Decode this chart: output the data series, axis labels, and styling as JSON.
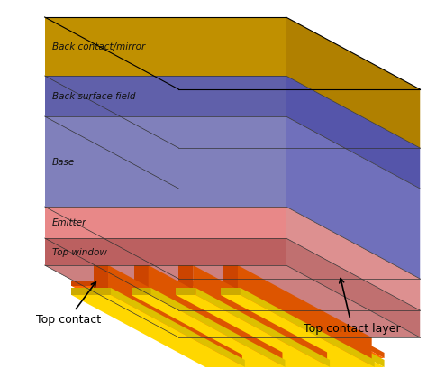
{
  "layers": [
    {
      "name": "Back contact/mirror",
      "color_top": "#D4A800",
      "color_front": "#B8900A",
      "color_side": "#C9A000",
      "thickness": 0.7
    },
    {
      "name": "Back surface field",
      "color_top": "#8888CC",
      "color_front": "#6666AA",
      "color_side": "#7777BB",
      "thickness": 0.5
    },
    {
      "name": "Base",
      "color_top": "#AAAADD",
      "color_front": "#8888BB",
      "color_side": "#9999CC",
      "thickness": 1.0
    },
    {
      "name": "Emitter",
      "color_top": "#FFB0B0",
      "color_front": "#EE9090",
      "color_side": "#F8A0A0",
      "thickness": 0.4
    },
    {
      "name": "Top window",
      "color_top": "#CC7777",
      "color_front": "#BB6666",
      "color_side": "#C97070",
      "thickness": 0.35
    }
  ],
  "bg_color": "#FFFFFF",
  "annotation_color": "#000000",
  "finger_orange": "#FF6600",
  "finger_yellow": "#FFD700",
  "busbar_orange": "#FF5500",
  "busbar_yellow": "#FFD700"
}
